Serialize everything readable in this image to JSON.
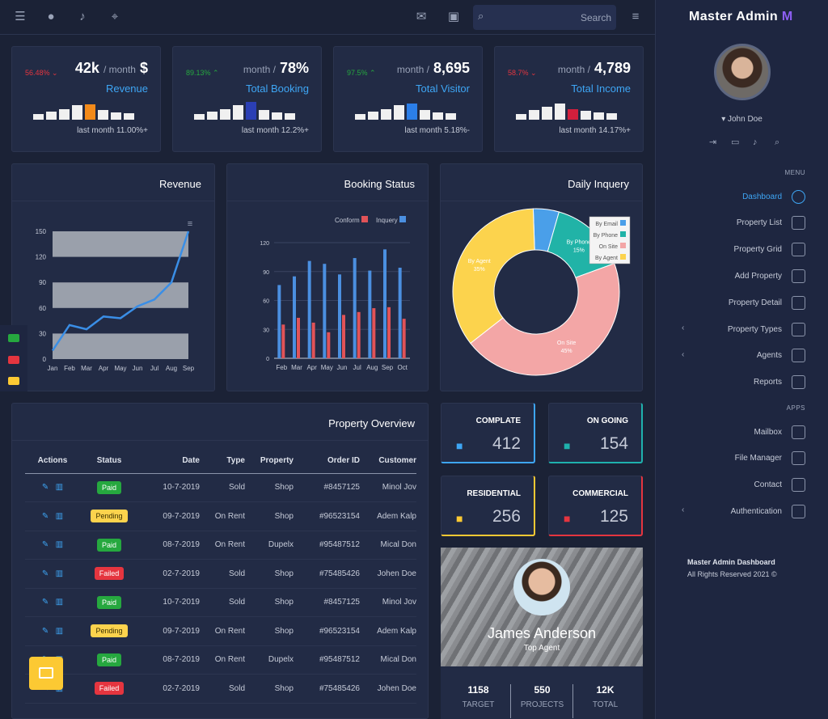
{
  "topbar": {
    "search_placeholder": "Search",
    "icons": [
      "sliders-icon",
      "user-icon",
      "bell-icon",
      "focus-icon",
      "mail-icon",
      "calendar-icon",
      "search-icon",
      "menu-icon"
    ]
  },
  "stats": [
    {
      "pct": "56.48%",
      "pct_color": "#e5353f",
      "arrow": "down",
      "value_prefix": "42k",
      "value_unit": "/ month",
      "value_suffix": "$",
      "label": "Revenue",
      "bars": [
        0.3,
        0.45,
        0.6,
        0.8,
        0.85,
        0.55,
        0.4,
        0.35
      ],
      "highlight": 4,
      "highlight_color": "#f28a1a",
      "footer": "last month 11.00%+"
    },
    {
      "pct": "89.13%",
      "pct_color": "#26a83f",
      "arrow": "up",
      "value_prefix": "month /",
      "value_main": "78%",
      "label": "Total Booking",
      "bars": [
        0.3,
        0.45,
        0.6,
        0.8,
        1.0,
        0.55,
        0.4,
        0.35
      ],
      "highlight": 4,
      "highlight_color": "#2b3fb5",
      "footer": "last month 12.2%+"
    },
    {
      "pct": "97.5%",
      "pct_color": "#26a83f",
      "arrow": "up",
      "value_prefix": "month /",
      "value_main": "8,695",
      "label": "Total Visitor",
      "bars": [
        0.3,
        0.45,
        0.6,
        0.8,
        0.9,
        0.55,
        0.4,
        0.35
      ],
      "highlight": 4,
      "highlight_color": "#2b7ee8",
      "footer": "last month 5.18%-"
    },
    {
      "pct": "58.7%",
      "pct_color": "#e5353f",
      "arrow": "down",
      "value_prefix": "month /",
      "value_main": "4,789",
      "label": "Total Income",
      "bars": [
        0.3,
        0.55,
        0.75,
        0.9,
        0.6,
        0.5,
        0.4,
        0.35
      ],
      "highlight": 4,
      "highlight_color": "#d21f3c",
      "footer": "last month 14.17%+"
    }
  ],
  "panels": {
    "revenue": "Revenue",
    "booking": "Booking Status",
    "inquiry": "Daily Inquery",
    "overview": "Property Overview"
  },
  "chart_data": [
    {
      "type": "line",
      "x": [
        "Jan",
        "Feb",
        "Mar",
        "Apr",
        "May",
        "Jun",
        "Jul",
        "Aug",
        "Sep"
      ],
      "series": [
        {
          "values": [
            10,
            40,
            35,
            50,
            48,
            62,
            70,
            90,
            150
          ],
          "color": "#3a8ee6"
        }
      ],
      "yticks": [
        "0",
        "30",
        "60",
        "90",
        "120",
        "150"
      ],
      "ylim": [
        0,
        150
      ],
      "bands": [
        [
          0,
          30
        ],
        [
          60,
          90
        ],
        [
          120,
          150
        ]
      ]
    },
    {
      "type": "bar",
      "categories": [
        "Feb",
        "Mar",
        "Apr",
        "May",
        "Jun",
        "Jul",
        "Aug",
        "Sep",
        "Oct"
      ],
      "series": [
        {
          "name": "Inquery",
          "values": [
            76,
            85,
            101,
            98,
            87,
            104,
            91,
            113,
            94
          ],
          "color": "#4b8fe0"
        },
        {
          "name": "Conform",
          "values": [
            35,
            42,
            37,
            27,
            45,
            48,
            52,
            53,
            41
          ],
          "color": "#e15358"
        }
      ],
      "yticks": [
        "0",
        "30",
        "60",
        "90",
        "120"
      ],
      "ylim": [
        0,
        120
      ]
    },
    {
      "type": "pie",
      "slices": [
        {
          "name": "By Email",
          "value": 5,
          "color": "#4a9fe9"
        },
        {
          "name": "By Phone",
          "value": 15,
          "color": "#21b3a7"
        },
        {
          "name": "On Site",
          "value": 45,
          "color": "#f3a6a6"
        },
        {
          "name": "By Agent",
          "value": 35,
          "color": "#fcd34d"
        }
      ],
      "labels": {
        "By Phone": "15%",
        "On Site": "45%",
        "By Agent": "35%"
      }
    }
  ],
  "counters": [
    {
      "label": "COMPLATE",
      "value": "412",
      "color": "#3ea6f5",
      "icon": "award-icon"
    },
    {
      "label": "ON GOING",
      "value": "154",
      "color": "#1fb1ad",
      "icon": "building-icon"
    },
    {
      "label": "RESIDENTIAL",
      "value": "256",
      "color": "#fcc933",
      "icon": "home-icon"
    },
    {
      "label": "COMMERCIAL",
      "value": "125",
      "color": "#e5353f",
      "icon": "office-icon"
    }
  ],
  "table": {
    "headers": [
      "Actions",
      "Status",
      "Date",
      "Type",
      "Property",
      "Order ID",
      "Customer"
    ],
    "rows": [
      {
        "status": "Paid",
        "cls": "b-paid",
        "date": "10-7-2019",
        "type": "Sold",
        "property": "Shop",
        "order": "#8457125",
        "customer": "Minol Jov"
      },
      {
        "status": "Pending",
        "cls": "b-pending",
        "date": "09-7-2019",
        "type": "On Rent",
        "property": "Shop",
        "order": "#96523154",
        "customer": "Adem Kalp"
      },
      {
        "status": "Paid",
        "cls": "b-paid",
        "date": "08-7-2019",
        "type": "On Rent",
        "property": "Dupelx",
        "order": "#95487512",
        "customer": "Mical Don"
      },
      {
        "status": "Failed",
        "cls": "b-failed",
        "date": "02-7-2019",
        "type": "Sold",
        "property": "Shop",
        "order": "#75485426",
        "customer": "Johen Doe"
      },
      {
        "status": "Paid",
        "cls": "b-paid",
        "date": "10-7-2019",
        "type": "Sold",
        "property": "Shop",
        "order": "#8457125",
        "customer": "Minol Jov"
      },
      {
        "status": "Pending",
        "cls": "b-pending",
        "date": "09-7-2019",
        "type": "On Rent",
        "property": "Shop",
        "order": "#96523154",
        "customer": "Adem Kalp"
      },
      {
        "status": "Paid",
        "cls": "b-paid",
        "date": "08-7-2019",
        "type": "On Rent",
        "property": "Dupelx",
        "order": "#95487512",
        "customer": "Mical Don"
      },
      {
        "status": "Failed",
        "cls": "b-failed",
        "date": "02-7-2019",
        "type": "Sold",
        "property": "Shop",
        "order": "#75485426",
        "customer": "Johen Doe"
      }
    ]
  },
  "profile": {
    "name": "James Anderson",
    "role": "Top Agent"
  },
  "profile_stats": [
    {
      "value": "1158",
      "label": "TARGET"
    },
    {
      "value": "550",
      "label": "PROJECTS"
    },
    {
      "value": "12K",
      "label": "TOTAL"
    }
  ],
  "sidebar": {
    "brand": "Master Admin",
    "user": "John Doe",
    "menu_header": "MENU",
    "apps_header": "APPS",
    "menu": [
      {
        "label": "Dashboard",
        "icon": "compass-icon",
        "active": true
      },
      {
        "label": "Property List",
        "icon": "list-icon"
      },
      {
        "label": "Property Grid",
        "icon": "grid-icon"
      },
      {
        "label": "Add Property",
        "icon": "award-icon"
      },
      {
        "label": "Property Detail",
        "icon": "file-icon"
      },
      {
        "label": "Property Types",
        "icon": "home-icon",
        "caret": true
      },
      {
        "label": "Agents",
        "icon": "users-icon",
        "caret": true
      },
      {
        "label": "Reports",
        "icon": "pie-icon"
      }
    ],
    "apps": [
      {
        "label": "Mailbox",
        "icon": "mail-icon"
      },
      {
        "label": "File Manager",
        "icon": "file-plus-icon"
      },
      {
        "label": "Contact",
        "icon": "phone-icon"
      },
      {
        "label": "Authentication",
        "icon": "alert-icon",
        "caret": true
      }
    ],
    "copyright_title": "Master Admin Dashboard",
    "copyright_line": "All Rights Reserved 2021 ©"
  }
}
